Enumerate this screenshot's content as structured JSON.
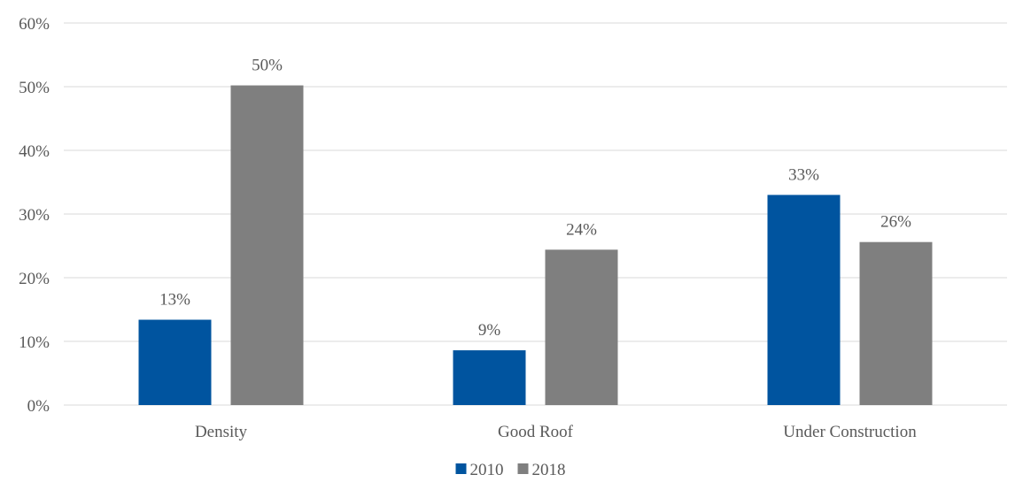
{
  "chart_data": {
    "type": "bar",
    "title": "",
    "xlabel": "",
    "ylabel": "",
    "categories": [
      "Density",
      "Good Roof",
      "Under Construction"
    ],
    "series": [
      {
        "name": "2010",
        "color": "#00549f",
        "values": [
          13.4,
          8.6,
          33.0
        ],
        "labels": [
          "13%",
          "9%",
          "33%"
        ]
      },
      {
        "name": "2018",
        "color": "#7f7f7f",
        "values": [
          50.2,
          24.4,
          25.6
        ],
        "labels": [
          "50%",
          "24%",
          "26%"
        ]
      }
    ],
    "ylim": [
      0,
      60
    ],
    "yticks": [
      0,
      10,
      20,
      30,
      40,
      50,
      60
    ],
    "ytick_labels": [
      "0%",
      "10%",
      "20%",
      "30%",
      "40%",
      "50%",
      "60%"
    ],
    "grid": true,
    "legend_position": "bottom"
  }
}
